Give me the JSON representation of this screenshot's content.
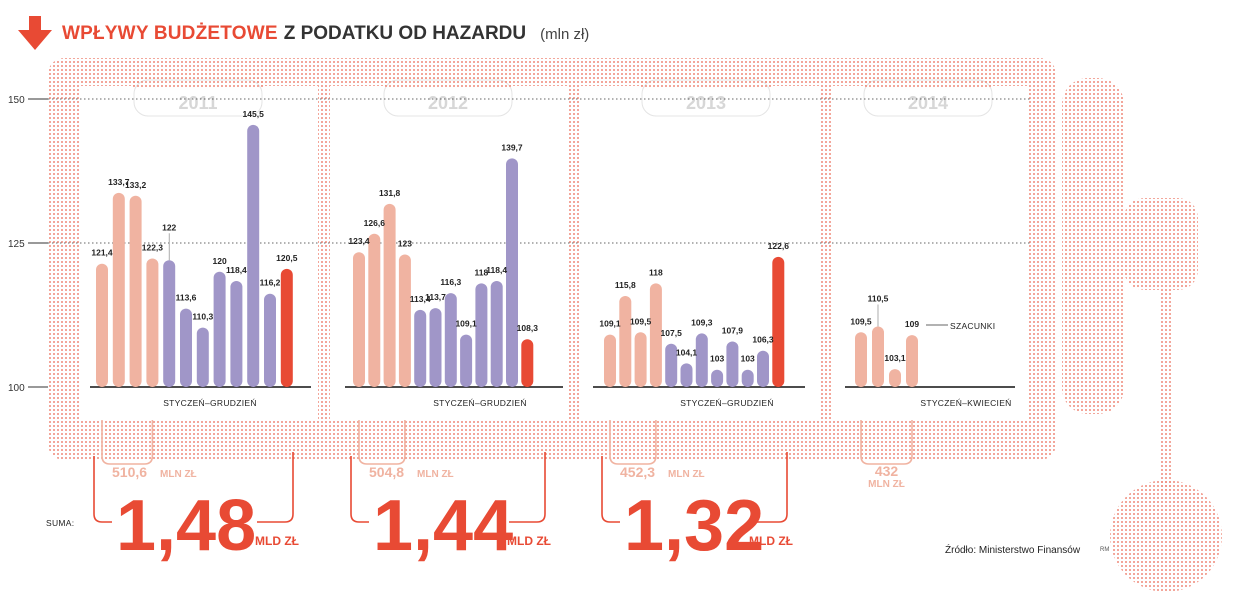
{
  "header": {
    "title_red": "WPŁYWY BUDŻETOWE",
    "title_dark": "Z PODATKU OD HAZARDU",
    "unit": "(mln zł)"
  },
  "colors": {
    "accent": "#e84a34",
    "salmon": "#f0b3a1",
    "purple": "#a096c8",
    "dots": "#ef8a7a"
  },
  "chart_data": {
    "type": "bar",
    "title": "WPŁYWY BUDŻETOWE Z PODATKU OD HAZARDU",
    "ylabel": "mln zł",
    "ylim": [
      100,
      150
    ],
    "yticks": [
      100,
      125,
      150
    ],
    "groups": [
      {
        "year": "2011",
        "period_label": "STYCZEŃ–GRUDZIEŃ",
        "values": [
          121.4,
          133.7,
          133.2,
          122.3,
          122,
          113.6,
          110.3,
          120,
          118.4,
          145.5,
          116.2,
          120.5
        ],
        "labels": [
          "121,4",
          "133,7",
          "133,2",
          "122,3",
          "122",
          "113,6",
          "110,3",
          "120",
          "118,4",
          "145,5",
          "116,2",
          "120,5"
        ],
        "colors": [
          "salmon",
          "salmon",
          "salmon",
          "salmon",
          "purple",
          "purple",
          "purple",
          "purple",
          "purple",
          "purple",
          "purple",
          "red"
        ],
        "partial_sum": "510,6",
        "partial_unit": "MLN ZŁ",
        "total": "1,48",
        "total_unit": "MLD ZŁ"
      },
      {
        "year": "2012",
        "period_label": "STYCZEŃ–GRUDZIEŃ",
        "values": [
          123.4,
          126.6,
          131.8,
          123,
          113.4,
          113.7,
          116.3,
          109.1,
          118,
          118.4,
          139.7,
          108.3
        ],
        "labels": [
          "123,4",
          "126,6",
          "131,8",
          "123",
          "113,4",
          "113,7",
          "116,3",
          "109,1",
          "118",
          "118,4",
          "139,7",
          "108,3"
        ],
        "colors": [
          "salmon",
          "salmon",
          "salmon",
          "salmon",
          "purple",
          "purple",
          "purple",
          "purple",
          "purple",
          "purple",
          "purple",
          "red"
        ],
        "partial_sum": "504,8",
        "partial_unit": "MLN ZŁ",
        "total": "1,44",
        "total_unit": "MLD ZŁ"
      },
      {
        "year": "2013",
        "period_label": "STYCZEŃ–GRUDZIEŃ",
        "values": [
          109.1,
          115.8,
          109.5,
          118,
          107.5,
          104.1,
          109.3,
          103,
          107.9,
          103,
          106.3,
          122.6
        ],
        "labels": [
          "109,1",
          "115,8",
          "109,5",
          "118",
          "107,5",
          "104,1",
          "109,3",
          "103",
          "107,9",
          "103",
          "106,3",
          "122,6"
        ],
        "colors": [
          "salmon",
          "salmon",
          "salmon",
          "salmon",
          "purple",
          "purple",
          "purple",
          "purple",
          "purple",
          "purple",
          "purple",
          "red"
        ],
        "partial_sum": "452,3",
        "partial_unit": "MLN ZŁ",
        "total": "1,32",
        "total_unit": "MLD ZŁ"
      },
      {
        "year": "2014",
        "period_label": "STYCZEŃ–KWIECIEŃ",
        "values": [
          109.5,
          110.5,
          103.1,
          109
        ],
        "labels": [
          "109,5",
          "110,5",
          "103,1",
          "109"
        ],
        "colors": [
          "salmon",
          "salmon",
          "salmon",
          "salmon"
        ],
        "partial_sum": "432",
        "partial_unit": "MLN ZŁ",
        "annotation": "SZACUNKI"
      }
    ]
  },
  "suma_label": "SUMA:",
  "source": "Źródło: Ministerstwo Finansów",
  "initials": "RM"
}
